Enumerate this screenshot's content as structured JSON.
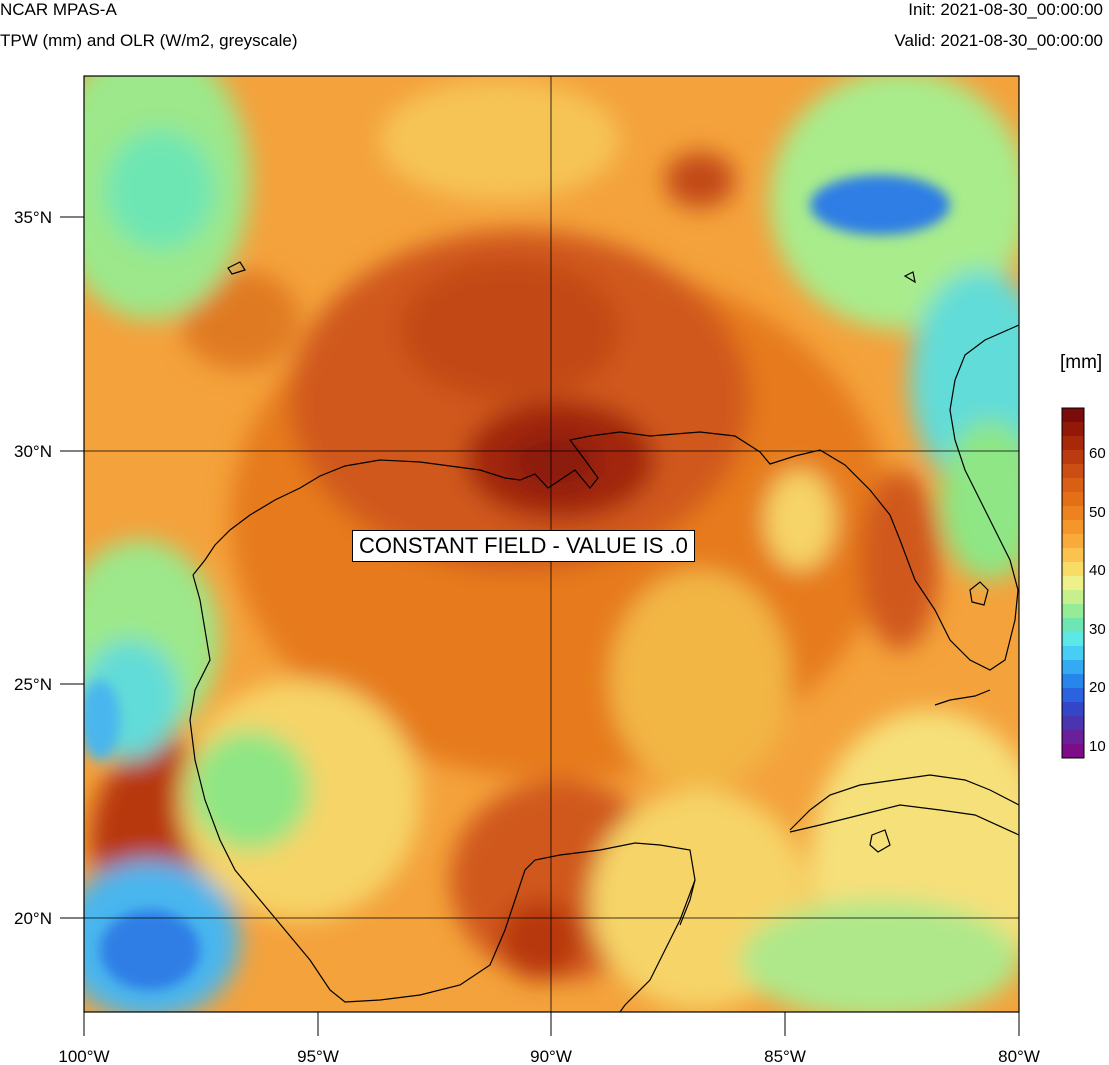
{
  "header": {
    "title": "NCAR MPAS-A",
    "subtitle": "TPW (mm) and OLR (W/m2, greyscale)",
    "init": "Init: 2021-08-30_00:00:00",
    "valid": "Valid: 2021-08-30_00:00:00"
  },
  "map": {
    "lon_labels": [
      "100°W",
      "95°W",
      "90°W",
      "85°W",
      "80°W"
    ],
    "lat_labels": [
      "35°N",
      "30°N",
      "25°N",
      "20°N"
    ],
    "overlay_message": "CONSTANT FIELD - VALUE IS .0"
  },
  "colorbar": {
    "units": "[mm]",
    "labels": [
      "60",
      "50",
      "40",
      "30",
      "20",
      "10"
    ],
    "colors": [
      "#7b0c0c",
      "#921808",
      "#a8280a",
      "#bb3a10",
      "#cc4e14",
      "#d85f14",
      "#e46f16",
      "#ee8220",
      "#f4962a",
      "#f8aa3a",
      "#fcc250",
      "#f8dc68",
      "#eef08a",
      "#c6f08c",
      "#96ec96",
      "#6ee6b4",
      "#5ce8e6",
      "#48cef4",
      "#34aaf2",
      "#2686ec",
      "#2a62e0",
      "#3446c8",
      "#4a34b0",
      "#6a2098",
      "#7c0c88"
    ]
  },
  "palette": {
    "land_background": "#f4a23c",
    "gulf_center": "#e67a1c",
    "core": "#8c1a08",
    "mid_red": "#c24a14",
    "yellow": "#f6d468",
    "green": "#8ee684",
    "cyan": "#62dcd8",
    "blue": "#2f7ee6",
    "coast": "#000000",
    "grid": "#000000"
  }
}
